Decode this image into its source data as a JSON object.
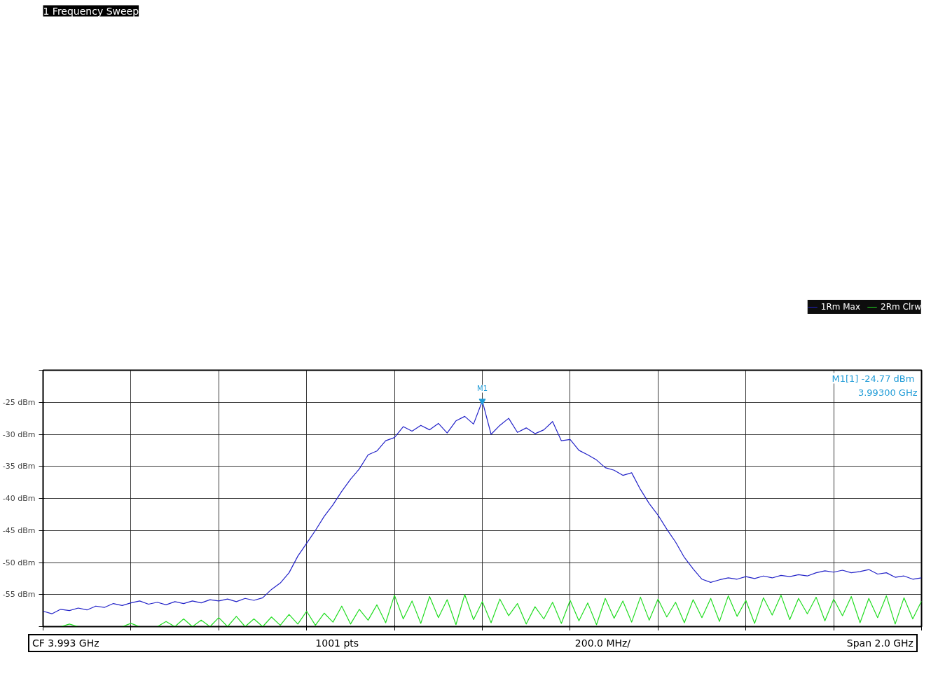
{
  "chart_data": {
    "type": "line",
    "title": "1 Frequency Sweep",
    "categories": [
      null,
      null,
      null,
      null,
      null,
      null,
      null,
      null,
      null,
      null,
      null,
      null,
      null,
      null,
      null,
      null,
      null,
      null,
      null,
      null,
      null,
      null,
      null,
      null,
      null,
      null,
      null,
      null,
      null,
      null,
      null,
      null,
      null,
      null,
      null,
      null,
      null,
      null,
      null,
      null,
      null,
      null,
      null,
      null,
      null,
      null,
      null,
      null,
      null,
      null,
      null,
      null,
      null,
      null,
      null,
      null,
      null,
      null,
      null,
      null,
      null,
      null,
      null,
      null,
      null,
      null,
      null,
      null,
      null,
      null,
      null,
      null,
      null,
      null,
      null,
      null,
      null,
      null,
      null,
      null,
      null,
      null,
      null,
      null,
      null,
      null,
      null,
      null,
      null,
      null,
      null,
      null,
      null,
      null,
      null,
      null,
      null,
      null,
      null,
      null,
      null
    ],
    "ylim": [
      -60,
      -20
    ],
    "yticks": [
      {
        "value": -60,
        "label": null
      },
      {
        "value": -55,
        "label": "-55 dBm"
      },
      {
        "value": -50,
        "label": "-50 dBm"
      },
      {
        "value": -45,
        "label": "-45 dBm"
      },
      {
        "value": -40,
        "label": "-40 dBm"
      },
      {
        "value": -35,
        "label": "-35 dBm"
      },
      {
        "value": -30,
        "label": "-30 dBm"
      },
      {
        "value": -25,
        "label": "-25 dBm"
      },
      {
        "value": -20,
        "label": null
      }
    ],
    "tick_labels": "y",
    "grid": true,
    "legend": "top right",
    "marker": "none",
    "line_style": "solid",
    "annotations": [
      "M1",
      "M1[1]  -24.77 dBm",
      "3.99300 GHz",
      "CF 3.993 GHz",
      "1001 pts",
      "200.0 MHz/",
      "Span 2.0 GHz"
    ],
    "series": [
      {
        "name": "1Rm Max",
        "color": "#2222c8",
        "values": [
          -57.6,
          -58.0,
          -57.3,
          -57.5,
          -57.1,
          -57.4,
          -56.8,
          -57.0,
          -56.4,
          -56.7,
          -56.3,
          -56.0,
          -56.5,
          -56.2,
          -56.6,
          -56.1,
          -56.4,
          -56.0,
          -56.3,
          -55.8,
          -56.0,
          -55.7,
          -56.1,
          -55.6,
          -55.9,
          -55.5,
          -54.2,
          -53.2,
          -51.6,
          -49.0,
          -47.0,
          -45.0,
          -42.8,
          -41.0,
          -38.9,
          -37.0,
          -35.4,
          -33.2,
          -32.6,
          -31.0,
          -30.5,
          -28.8,
          -29.5,
          -28.6,
          -29.3,
          -28.3,
          -29.8,
          -27.9,
          -27.2,
          -28.4,
          -24.8,
          -30.0,
          -28.6,
          -27.5,
          -29.7,
          -29.0,
          -29.9,
          -29.3,
          -28.0,
          -31.0,
          -30.8,
          -32.5,
          -33.2,
          -34.0,
          -35.2,
          -35.6,
          -36.4,
          -36.0,
          -38.6,
          -40.8,
          -42.6,
          -44.8,
          -46.8,
          -49.2,
          -51.0,
          -52.6,
          -53.1,
          -52.7,
          -52.4,
          -52.6,
          -52.2,
          -52.5,
          -52.1,
          -52.4,
          -52.0,
          -52.2,
          -51.9,
          -52.1,
          -51.6,
          -51.3,
          -51.5,
          -51.2,
          -51.6,
          -51.4,
          -51.1,
          -51.8,
          -51.6,
          -52.3,
          -52.1,
          -52.6,
          -52.4
        ]
      },
      {
        "name": "2Rm Clrw",
        "color": "#22dd22",
        "values": [
          -60,
          -60,
          -60,
          -59.6,
          -60,
          -60,
          -60,
          -60,
          -60,
          -60,
          -59.5,
          -60,
          -60,
          -60,
          -59.2,
          -60,
          -58.8,
          -60,
          -59.0,
          -60,
          -58.6,
          -60,
          -58.4,
          -60,
          -58.8,
          -60,
          -58.5,
          -59.8,
          -58.1,
          -59.6,
          -57.6,
          -59.8,
          -57.9,
          -59.3,
          -56.8,
          -59.6,
          -57.3,
          -59.0,
          -56.6,
          -59.4,
          -55.1,
          -58.8,
          -56.0,
          -59.5,
          -55.3,
          -58.6,
          -55.8,
          -59.7,
          -55.0,
          -58.9,
          -56.1,
          -59.4,
          -55.7,
          -58.3,
          -56.4,
          -59.6,
          -56.9,
          -58.8,
          -56.2,
          -59.5,
          -55.9,
          -59.1,
          -56.3,
          -59.7,
          -55.6,
          -58.7,
          -56.0,
          -59.3,
          -55.4,
          -59.0,
          -55.7,
          -58.5,
          -56.2,
          -59.4,
          -55.8,
          -58.6,
          -55.6,
          -59.2,
          -55.2,
          -58.4,
          -55.9,
          -59.5,
          -55.5,
          -58.2,
          -55.1,
          -58.9,
          -55.6,
          -58.0,
          -55.4,
          -59.1,
          -55.7,
          -58.3,
          -55.3,
          -59.4,
          -55.6,
          -58.6,
          -55.2,
          -59.6,
          -55.5,
          -58.8,
          -56.0
        ]
      }
    ]
  }
}
